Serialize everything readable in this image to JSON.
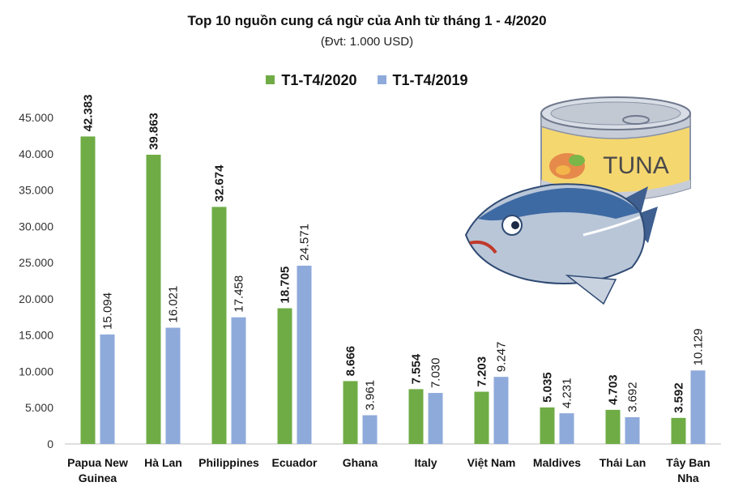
{
  "header": {
    "title": "Top 10 nguồn cung cá ngừ của Anh từ tháng 1 - 4/2020",
    "subtitle": "(Đvt: 1.000 USD)"
  },
  "illustration": {
    "can_label": "TUNA"
  },
  "colors": {
    "series_2020": "#6fac46",
    "series_2019": "#8eaadb"
  },
  "chart_data": {
    "type": "bar",
    "categories": [
      "Papua New Guinea",
      "Hà Lan",
      "Philippines",
      "Ecuador",
      "Ghana",
      "Italy",
      "Việt Nam",
      "Maldives",
      "Thái Lan",
      "Tây Ban Nha"
    ],
    "category_lines": [
      [
        "Papua New",
        "Guinea"
      ],
      [
        "Hà Lan"
      ],
      [
        "Philippines"
      ],
      [
        "Ecuador"
      ],
      [
        "Ghana"
      ],
      [
        "Italy"
      ],
      [
        "Việt Nam"
      ],
      [
        "Maldives"
      ],
      [
        "Thái Lan"
      ],
      [
        "Tây Ban",
        "Nha"
      ]
    ],
    "series": [
      {
        "name": "T1-T4/2020",
        "values": [
          42383,
          39863,
          32674,
          18705,
          8666,
          7554,
          7203,
          5035,
          4703,
          3592
        ],
        "labels": [
          "42.383",
          "39.863",
          "32.674",
          "18.705",
          "8.666",
          "7.554",
          "7.203",
          "5.035",
          "4.703",
          "3.592"
        ]
      },
      {
        "name": "T1-T4/2019",
        "values": [
          15094,
          16021,
          17458,
          24571,
          3961,
          7030,
          9247,
          4231,
          3692,
          10129
        ],
        "labels": [
          "15.094",
          "16.021",
          "17.458",
          "24.571",
          "3.961",
          "7.030",
          "9.247",
          "4.231",
          "3.692",
          "10.129"
        ]
      }
    ],
    "yticks": [
      0,
      5000,
      10000,
      15000,
      20000,
      25000,
      30000,
      35000,
      40000,
      45000
    ],
    "ytick_labels": [
      "0",
      "5.000",
      "10.000",
      "15.000",
      "20.000",
      "25.000",
      "30.000",
      "35.000",
      "40.000",
      "45.000"
    ],
    "ylim": [
      0,
      45000
    ],
    "legend_position": "top-center",
    "grid": false
  }
}
